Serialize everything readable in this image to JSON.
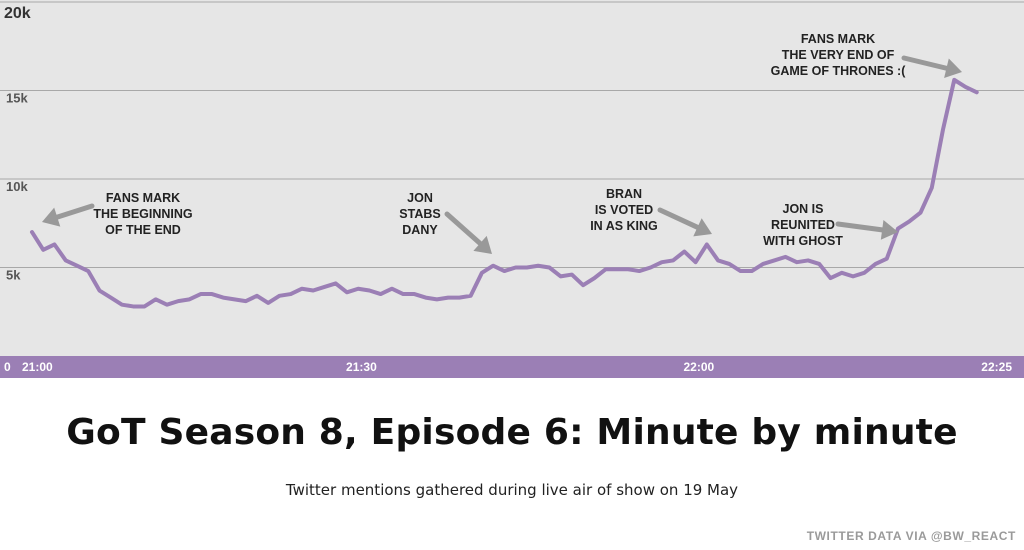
{
  "chart_data": {
    "type": "line",
    "title": "GoT Season 8, Episode 6: Minute by minute",
    "subtitle": "Twitter mentions gathered during live air of show on 19 May",
    "credit": "TWITTER DATA VIA @BW_REACT",
    "xlabel": "",
    "ylabel": "",
    "ylim": [
      0,
      20000
    ],
    "yticks": [
      {
        "value": 0,
        "label": "0"
      },
      {
        "value": 5000,
        "label": "5k"
      },
      {
        "value": 10000,
        "label": "10k"
      },
      {
        "value": 15000,
        "label": "15k"
      },
      {
        "value": 20000,
        "label": "20k"
      }
    ],
    "xlim": [
      0,
      85
    ],
    "xticks": [
      {
        "value": 0,
        "label": "21:00"
      },
      {
        "value": 30,
        "label": "21:30"
      },
      {
        "value": 60,
        "label": "22:00"
      },
      {
        "value": 85,
        "label": "22:25"
      }
    ],
    "x_unit": "minutes after 21:00",
    "grid": true,
    "line_color": "#9b7fb5",
    "background_color": "#e6e6e6",
    "axis_band_color": "#9b7fb5",
    "series": [
      {
        "values": [
          7000,
          6000,
          6300,
          5400,
          5100,
          4800,
          3700,
          3300,
          2900,
          2800,
          2800,
          3200,
          2900,
          3100,
          3200,
          3500,
          3500,
          3300,
          3200,
          3100,
          3400,
          3000,
          3400,
          3500,
          3800,
          3700,
          3900,
          4100,
          3600,
          3800,
          3700,
          3500,
          3800,
          3500,
          3500,
          3300,
          3200,
          3300,
          3300,
          3400,
          4700,
          5100,
          4800,
          5000,
          5000,
          5100,
          5000,
          4500,
          4600,
          4000,
          4400,
          4900,
          4900,
          4900,
          4800,
          5000,
          5300,
          5400,
          5900,
          5300,
          6300,
          5400,
          5200,
          4800,
          4800,
          5200,
          5400,
          5600,
          5300,
          5400,
          5200,
          4400,
          4700,
          4500,
          4700,
          5200,
          5500,
          7200,
          7600,
          8100,
          9500,
          12800,
          15600,
          15200,
          14900
        ]
      }
    ],
    "annotations": [
      {
        "lines": [
          "FANS MARK",
          "THE BEGINNING",
          "OF THE END"
        ],
        "at_x": 0
      },
      {
        "lines": [
          "JON",
          "STABS",
          "DANY"
        ],
        "at_x": 40
      },
      {
        "lines": [
          "BRAN",
          "IS VOTED",
          "IN AS KING"
        ],
        "at_x": 60
      },
      {
        "lines": [
          "JON IS",
          "REUNITED",
          "WITH GHOST"
        ],
        "at_x": 77
      },
      {
        "lines": [
          "FANS MARK",
          "THE VERY END OF",
          "GAME OF THRONES :("
        ],
        "at_x": 82
      }
    ]
  }
}
